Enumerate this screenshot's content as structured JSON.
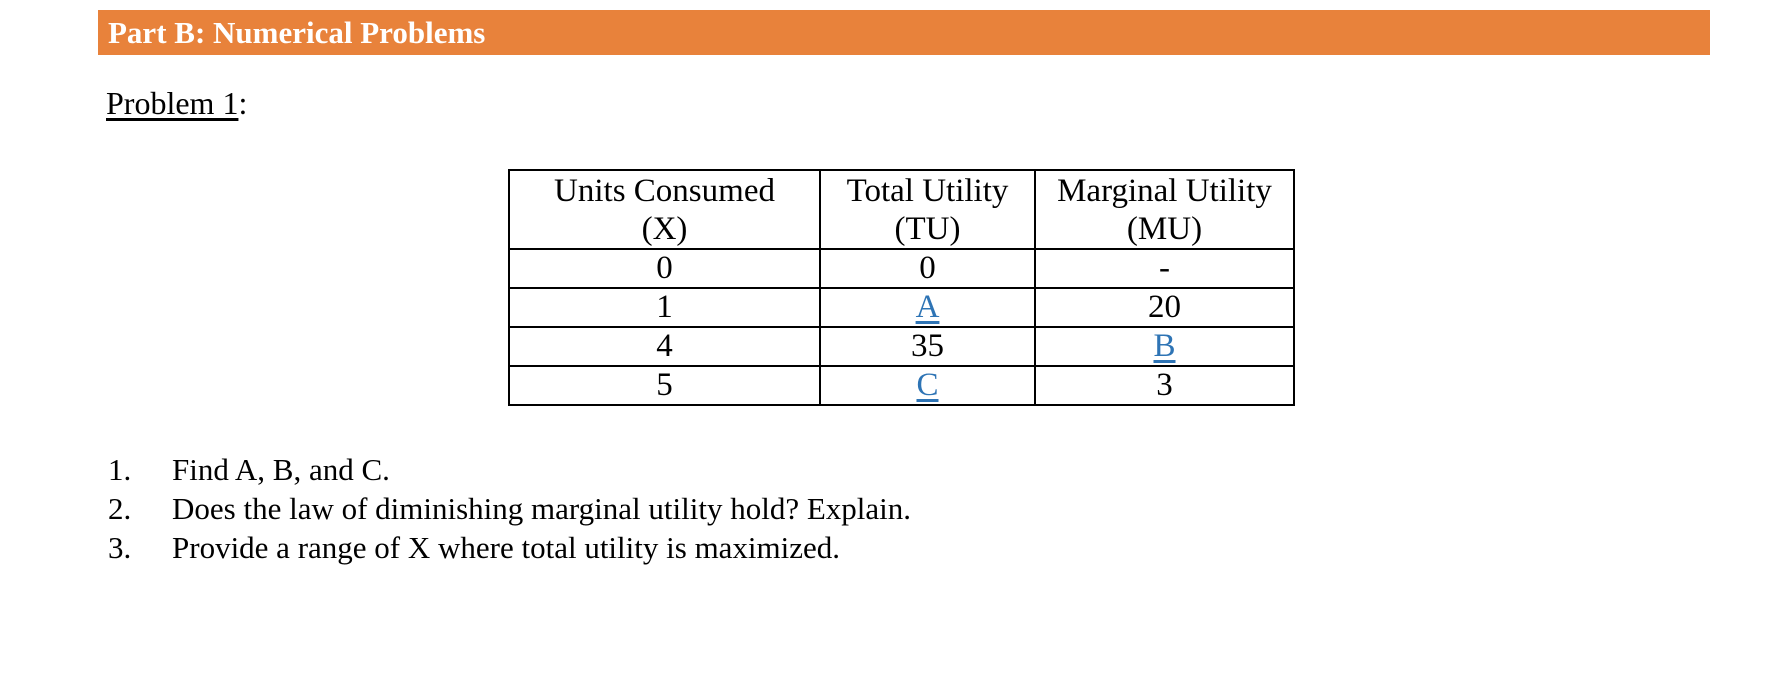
{
  "banner": {
    "title": "Part B: Numerical Problems"
  },
  "colors": {
    "banner_bg": "#E8823B",
    "banner_text": "#FFFFFF",
    "blank_blue": "#2E74B5",
    "border": "#000000"
  },
  "problem": {
    "title": "Problem 1",
    "colon": ":"
  },
  "table": {
    "headers": [
      {
        "line1": "Units Consumed",
        "line2": "(X)"
      },
      {
        "line1": "Total Utility",
        "line2": "(TU)"
      },
      {
        "line1": "Marginal Utility",
        "line2": "(MU)"
      }
    ],
    "rows": [
      {
        "x": "0",
        "tu": "0",
        "mu": "-"
      },
      {
        "x": "1",
        "tu": "A",
        "mu": "20"
      },
      {
        "x": "4",
        "tu": "35",
        "mu": "B"
      },
      {
        "x": "5",
        "tu": "C",
        "mu": "3"
      }
    ]
  },
  "questions": [
    {
      "number": "1.",
      "text": "Find A, B, and C."
    },
    {
      "number": "2.",
      "text": "Does the law of diminishing marginal utility hold? Explain."
    },
    {
      "number": "3.",
      "text": "Provide a range of X where total utility is maximized."
    }
  ]
}
